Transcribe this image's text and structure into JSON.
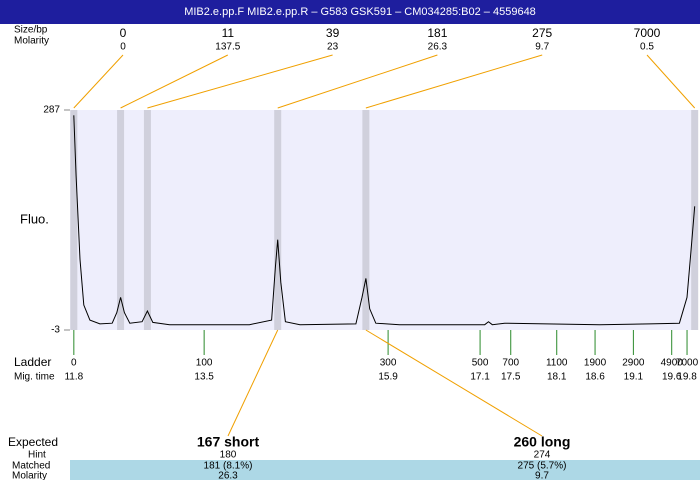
{
  "chart_data": {
    "type": "line",
    "title": "MIB2.e.pp.F  MIB2.e.pp.R – G583 GSK591 – CM034285:B02 – 4559648",
    "size_label": "Size/bp",
    "molarity_label": "Molarity",
    "y_label": "Fluo.",
    "ylim": [
      -3,
      287
    ],
    "yticks": [
      -3,
      287
    ],
    "xlim": [
      11.75,
      19.93
    ],
    "color": "#000000",
    "x": [
      11.8,
      11.83,
      11.88,
      11.93,
      12.01,
      12.14,
      12.3,
      12.36,
      12.41,
      12.46,
      12.53,
      12.69,
      12.76,
      12.83,
      13.05,
      14.09,
      14.38,
      14.43,
      14.46,
      14.5,
      14.56,
      14.75,
      15.48,
      15.56,
      15.61,
      15.66,
      15.74,
      16.05,
      17.16,
      17.21,
      17.26,
      17.42,
      18.66,
      19.31,
      19.7,
      19.8,
      19.85,
      19.9
    ],
    "values": [
      280,
      200,
      90,
      30,
      10,
      5,
      6,
      20,
      40,
      20,
      6,
      8,
      22,
      7,
      4,
      4,
      10,
      80,
      116,
      60,
      8,
      4,
      5,
      40,
      65,
      25,
      6,
      4,
      4,
      8,
      4,
      6,
      4,
      5,
      6,
      40,
      100,
      160
    ],
    "peaks": {
      "sizes": [
        0,
        11,
        39,
        181,
        275,
        7000
      ],
      "molarity": [
        0,
        137.5,
        23,
        26.3,
        9.7,
        0.5
      ],
      "times": [
        11.8,
        12.41,
        12.76,
        14.46,
        15.61,
        19.9
      ]
    },
    "ladder": {
      "label": "Ladder",
      "time_label": "Mig. time",
      "sizes": [
        0,
        100,
        300,
        500,
        700,
        1100,
        1900,
        2900,
        4900,
        7000
      ],
      "times": [
        11.8,
        13.5,
        15.9,
        17.1,
        17.5,
        18.1,
        18.6,
        19.1,
        19.6,
        19.8
      ]
    },
    "expected": {
      "label": "Expected",
      "hint_label": "Hint",
      "matched_label": "Matched",
      "molarity_label": "Molarity",
      "items": [
        {
          "name": "167 short",
          "hint": 180,
          "matched": "181 (8.1%)",
          "molarity": 26.3
        },
        {
          "name": "260 long",
          "hint": 274,
          "matched": "275 (5.7%)",
          "molarity": 9.7
        }
      ]
    }
  }
}
